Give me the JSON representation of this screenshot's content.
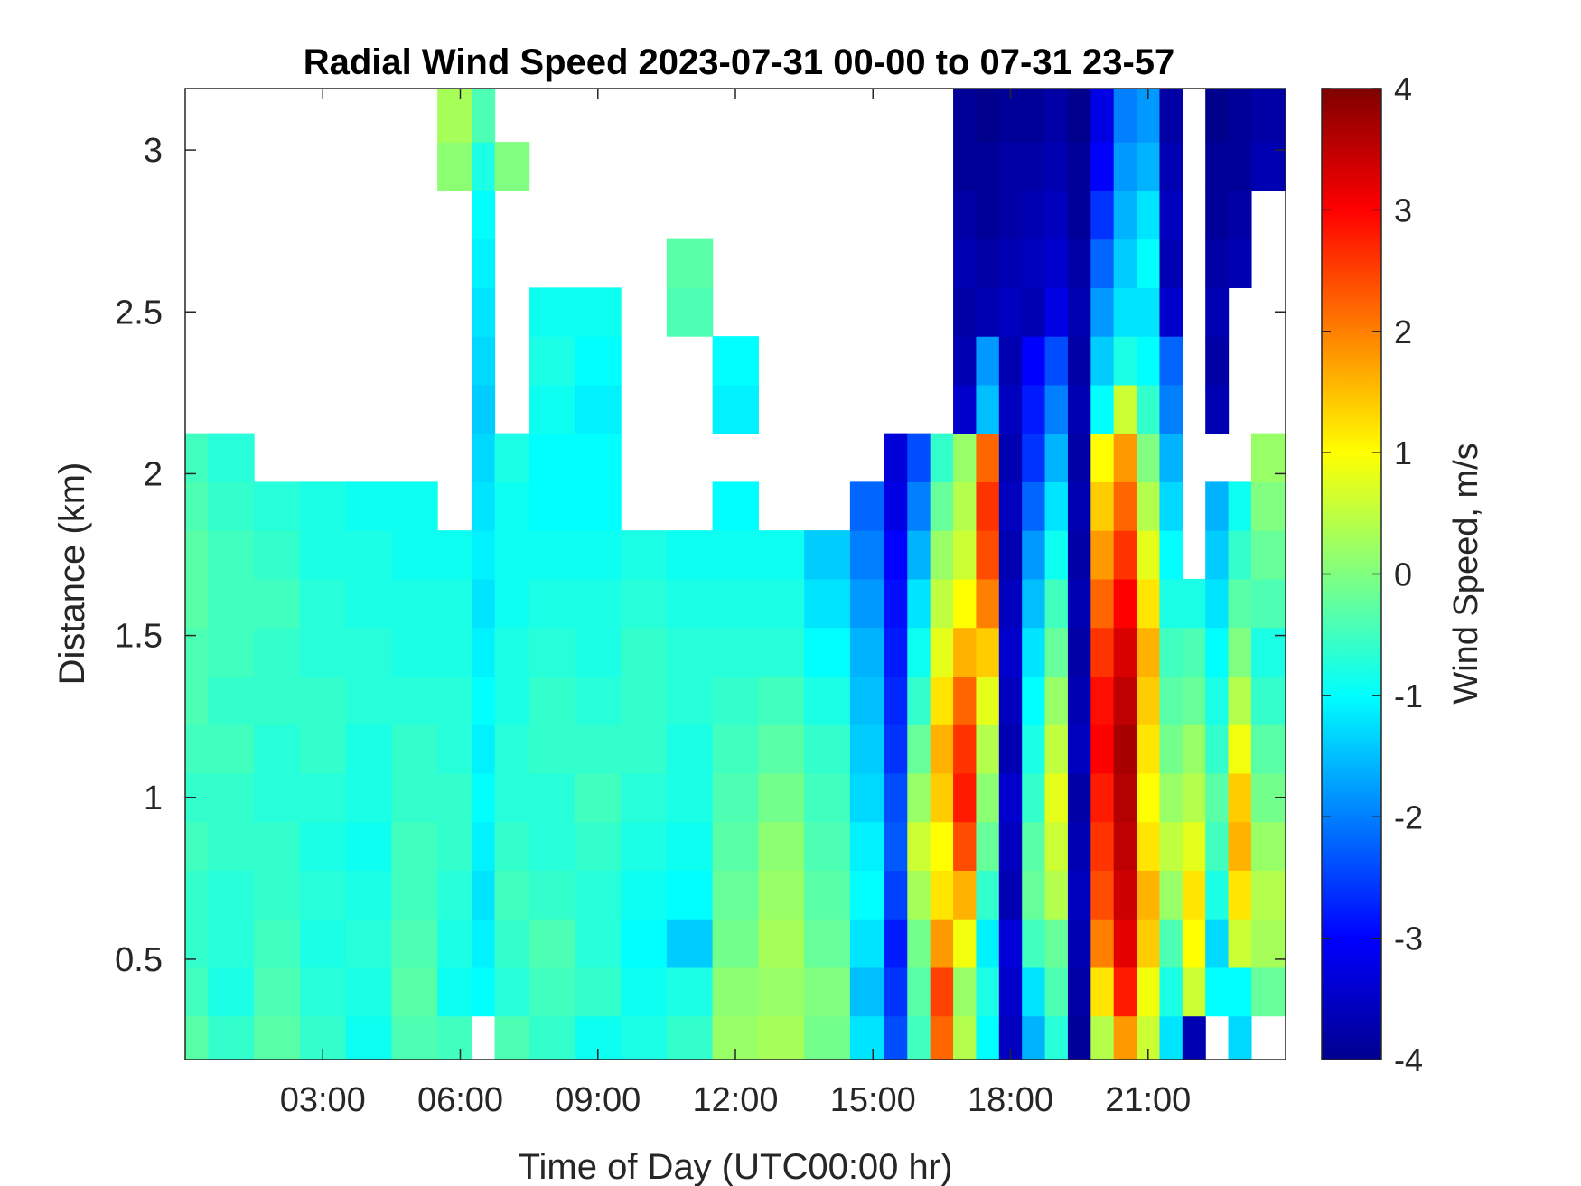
{
  "chart_data": {
    "type": "heatmap",
    "title": "Radial Wind Speed 2023-07-31 00-00 to 07-31 23-57",
    "xlabel": "Time of Day (UTC00:00 hr)",
    "ylabel": "Distance (km)",
    "colorbar_label": "Wind Speed, m/s",
    "colormap": "jet",
    "xlim_hours": [
      0,
      24
    ],
    "ylim_km": [
      0.19,
      3.19
    ],
    "clim": [
      -4,
      4
    ],
    "x_ticks": [
      {
        "value": 3,
        "label": "03:00"
      },
      {
        "value": 6,
        "label": "06:00"
      },
      {
        "value": 9,
        "label": "09:00"
      },
      {
        "value": 12,
        "label": "12:00"
      },
      {
        "value": 15,
        "label": "15:00"
      },
      {
        "value": 18,
        "label": "18:00"
      },
      {
        "value": 21,
        "label": "21:00"
      }
    ],
    "y_ticks": [
      {
        "value": 0.5,
        "label": "0.5"
      },
      {
        "value": 1,
        "label": "1"
      },
      {
        "value": 1.5,
        "label": "1.5"
      },
      {
        "value": 2,
        "label": "2"
      },
      {
        "value": 2.5,
        "label": "2.5"
      },
      {
        "value": 3,
        "label": "3"
      }
    ],
    "colorbar_ticks": [
      {
        "value": 4,
        "label": "4"
      },
      {
        "value": 3,
        "label": "3"
      },
      {
        "value": 2,
        "label": "2"
      },
      {
        "value": 1,
        "label": "1"
      },
      {
        "value": 0,
        "label": "0"
      },
      {
        "value": -1,
        "label": "-1"
      },
      {
        "value": -2,
        "label": "-2"
      },
      {
        "value": -3,
        "label": "-3"
      },
      {
        "value": -4,
        "label": "-4"
      }
    ],
    "x": [
      0,
      1,
      2,
      3,
      4,
      5,
      6,
      6.5,
      7,
      8,
      9,
      10,
      11,
      12,
      13,
      14,
      15,
      15.5,
      16,
      16.5,
      17,
      17.5,
      18,
      18.5,
      19,
      19.5,
      20,
      20.5,
      21,
      21.5,
      22,
      22.5,
      23,
      23.5
    ],
    "y": [
      0.25,
      0.4,
      0.55,
      0.7,
      0.85,
      1.0,
      1.15,
      1.3,
      1.45,
      1.6,
      1.75,
      1.9,
      2.05,
      2.2,
      2.35,
      2.5,
      2.65,
      2.8,
      2.95,
      3.1
    ],
    "z": [
      [
        -0.3,
        -0.6,
        -0.3,
        -0.6,
        -0.9,
        -0.4,
        -0.5,
        null,
        -0.4,
        -0.6,
        -0.9,
        -0.8,
        -0.6,
        0.2,
        0.3,
        -0.1,
        -1.2,
        -2.4,
        -0.5,
        2.2,
        0.4,
        -1.0,
        -3.5,
        -1.6,
        -0.7,
        -3.8,
        0.4,
        1.8,
        0.6,
        -1.2,
        -3.6,
        null,
        -1.3,
        null
      ],
      [
        -0.5,
        -0.8,
        -0.4,
        -0.7,
        -0.8,
        -0.3,
        -0.9,
        -1.0,
        -0.7,
        -0.5,
        -0.6,
        -0.9,
        -0.8,
        0.1,
        0.2,
        0.0,
        -1.5,
        -2.6,
        -0.3,
        2.5,
        0.2,
        -0.8,
        -3.4,
        -1.2,
        -0.4,
        -3.7,
        1.2,
        2.8,
        0.9,
        -0.8,
        0.6,
        -1.0,
        -1.0,
        -0.2
      ],
      [
        -0.6,
        -0.7,
        -0.5,
        -0.8,
        -0.7,
        -0.4,
        -0.8,
        -1.1,
        -0.6,
        -0.4,
        -0.7,
        -1.0,
        -1.4,
        -0.1,
        0.3,
        -0.2,
        -1.2,
        -2.8,
        -0.1,
        1.8,
        0.9,
        -1.1,
        -3.3,
        -0.5,
        -0.2,
        -3.6,
        2.0,
        3.2,
        1.4,
        -0.4,
        1.0,
        -1.3,
        0.6,
        0.3
      ],
      [
        -0.6,
        -0.7,
        -0.6,
        -0.7,
        -0.8,
        -0.5,
        -0.7,
        -1.2,
        -0.5,
        -0.6,
        -0.7,
        -0.9,
        -1.0,
        -0.2,
        0.2,
        -0.3,
        -1.0,
        -2.5,
        0.3,
        1.2,
        1.6,
        -0.6,
        -3.6,
        -0.2,
        0.4,
        -3.5,
        2.4,
        3.4,
        1.6,
        0.2,
        1.2,
        -0.8,
        1.2,
        0.4
      ],
      [
        -0.5,
        -0.6,
        -0.6,
        -0.8,
        -0.9,
        -0.5,
        -0.6,
        -1.1,
        -0.6,
        -0.7,
        -0.6,
        -0.8,
        -0.9,
        -0.3,
        0.1,
        -0.4,
        -1.1,
        -2.3,
        0.6,
        1.0,
        2.4,
        -0.2,
        -3.5,
        -0.3,
        0.6,
        -3.6,
        2.6,
        3.5,
        1.2,
        0.5,
        0.8,
        -0.5,
        1.6,
        0.2
      ],
      [
        -0.6,
        -0.6,
        -0.7,
        -0.7,
        -0.8,
        -0.6,
        -0.6,
        -1.0,
        -0.7,
        -0.7,
        -0.5,
        -0.7,
        -0.8,
        -0.4,
        -0.1,
        -0.5,
        -1.3,
        -2.4,
        0.2,
        1.4,
        2.8,
        0.1,
        -3.4,
        -0.6,
        0.8,
        -3.7,
        2.8,
        3.6,
        1.0,
        0.2,
        0.4,
        -0.3,
        1.4,
        -0.1
      ],
      [
        -0.5,
        -0.5,
        -0.7,
        -0.6,
        -0.8,
        -0.6,
        -0.7,
        -1.1,
        -0.7,
        -0.6,
        -0.6,
        -0.6,
        -0.8,
        -0.5,
        -0.3,
        -0.6,
        -1.4,
        -2.6,
        -0.2,
        1.6,
        2.6,
        0.4,
        -3.6,
        -0.8,
        0.5,
        -3.5,
        3.0,
        3.7,
        1.2,
        -0.1,
        0.2,
        -0.6,
        0.9,
        -0.3
      ],
      [
        -0.4,
        -0.6,
        -0.6,
        -0.6,
        -0.7,
        -0.7,
        -0.7,
        -1.0,
        -0.8,
        -0.6,
        -0.7,
        -0.6,
        -0.7,
        -0.6,
        -0.5,
        -0.8,
        -1.5,
        -2.7,
        -0.6,
        1.2,
        2.2,
        0.8,
        -3.5,
        -1.0,
        0.2,
        -3.6,
        2.9,
        3.5,
        1.4,
        -0.3,
        -0.2,
        -0.8,
        0.4,
        -0.6
      ],
      [
        -0.4,
        -0.5,
        -0.6,
        -0.7,
        -0.7,
        -0.8,
        -0.8,
        -1.1,
        -0.8,
        -0.7,
        -0.8,
        -0.6,
        -0.7,
        -0.7,
        -0.7,
        -1.0,
        -1.6,
        -2.8,
        -0.9,
        0.8,
        1.6,
        1.4,
        -3.4,
        -1.2,
        -0.2,
        -3.7,
        2.6,
        3.3,
        1.6,
        -0.5,
        -0.4,
        -1.0,
        0.0,
        -0.8
      ],
      [
        -0.3,
        -0.5,
        -0.5,
        -0.7,
        -0.8,
        -0.8,
        -0.8,
        -1.2,
        -0.9,
        -0.8,
        -0.8,
        -0.7,
        -0.8,
        -0.8,
        -0.8,
        -1.2,
        -1.8,
        -2.9,
        -1.2,
        0.5,
        1.0,
        2.0,
        -3.5,
        -1.5,
        -0.5,
        -3.6,
        2.2,
        3.0,
        1.2,
        -0.8,
        -0.8,
        -1.2,
        -0.3,
        -0.4
      ],
      [
        -0.3,
        -0.5,
        -0.6,
        -0.8,
        -0.8,
        -0.9,
        -0.9,
        -1.1,
        -0.9,
        -0.9,
        -0.9,
        -0.8,
        -0.9,
        -0.9,
        -0.9,
        -1.4,
        -2.0,
        -3.0,
        -1.6,
        0.2,
        0.6,
        2.4,
        -3.6,
        -1.8,
        -0.9,
        -3.7,
        1.8,
        2.6,
        0.8,
        -1.0,
        null,
        -1.4,
        -0.6,
        -0.2
      ],
      [
        -0.4,
        -0.6,
        -0.7,
        -0.8,
        -0.9,
        -0.9,
        null,
        -1.2,
        -0.9,
        -1.0,
        -1.0,
        null,
        null,
        -1.0,
        null,
        null,
        -2.2,
        -3.2,
        -2.0,
        -0.2,
        0.4,
        2.6,
        -3.5,
        -2.2,
        -1.2,
        -3.6,
        1.4,
        2.2,
        0.4,
        -1.3,
        null,
        -1.6,
        -0.9,
        0.0
      ],
      [
        -0.5,
        -0.7,
        null,
        null,
        null,
        null,
        null,
        -1.3,
        -0.8,
        -1.0,
        -1.0,
        null,
        null,
        null,
        null,
        null,
        null,
        -3.3,
        -2.4,
        -0.6,
        0.2,
        2.2,
        -3.6,
        -2.6,
        -1.6,
        -3.7,
        1.0,
        1.8,
        0.0,
        -1.6,
        null,
        null,
        null,
        0.2
      ],
      [
        null,
        null,
        null,
        null,
        null,
        null,
        null,
        -1.4,
        null,
        -0.9,
        -1.1,
        null,
        null,
        -1.1,
        null,
        null,
        null,
        null,
        null,
        null,
        -3.4,
        -1.5,
        -3.5,
        -2.8,
        -2.0,
        -3.6,
        -1.0,
        0.6,
        -0.6,
        -2.0,
        null,
        -3.6,
        null,
        null
      ],
      [
        null,
        null,
        null,
        null,
        null,
        null,
        null,
        -1.3,
        null,
        -0.8,
        -1.0,
        null,
        null,
        -1.0,
        null,
        null,
        null,
        null,
        null,
        null,
        -3.6,
        -1.8,
        -3.6,
        -3.0,
        -2.4,
        -3.7,
        -1.4,
        -0.8,
        -1.0,
        -2.2,
        null,
        -3.7,
        null,
        null
      ],
      [
        null,
        null,
        null,
        null,
        null,
        null,
        null,
        -1.2,
        null,
        -0.9,
        -0.9,
        null,
        -0.4,
        null,
        null,
        null,
        null,
        null,
        null,
        null,
        -3.7,
        -3.6,
        -3.5,
        -3.6,
        -3.2,
        -3.6,
        -1.8,
        -1.2,
        -1.2,
        -3.4,
        null,
        -3.6,
        null,
        null
      ],
      [
        null,
        null,
        null,
        null,
        null,
        null,
        null,
        -1.1,
        null,
        null,
        null,
        null,
        -0.3,
        null,
        null,
        null,
        null,
        null,
        null,
        null,
        -3.6,
        -3.7,
        -3.6,
        -3.5,
        -3.4,
        -3.7,
        -2.2,
        -1.4,
        -1.0,
        -3.6,
        null,
        -3.7,
        -3.6,
        null
      ],
      [
        null,
        null,
        null,
        null,
        null,
        null,
        null,
        -1.0,
        null,
        null,
        null,
        null,
        null,
        null,
        null,
        null,
        null,
        null,
        null,
        null,
        -3.7,
        -3.8,
        -3.7,
        -3.6,
        -3.5,
        -3.8,
        -2.6,
        -1.6,
        -1.2,
        -3.5,
        null,
        -3.8,
        -3.7,
        null
      ],
      [
        null,
        null,
        null,
        null,
        null,
        null,
        0.1,
        -0.8,
        0.0,
        null,
        null,
        null,
        null,
        null,
        null,
        null,
        null,
        null,
        null,
        null,
        -3.8,
        -3.8,
        -3.7,
        -3.7,
        -3.6,
        -3.8,
        -3.0,
        -1.8,
        -1.6,
        -3.6,
        null,
        -3.8,
        -3.8,
        -3.6
      ],
      [
        null,
        null,
        null,
        null,
        null,
        null,
        0.3,
        -0.4,
        null,
        null,
        null,
        null,
        null,
        null,
        null,
        null,
        null,
        null,
        null,
        null,
        -3.8,
        -3.9,
        -3.8,
        -3.8,
        -3.7,
        -3.9,
        -3.2,
        -2.0,
        -1.8,
        -3.7,
        null,
        -3.9,
        -3.8,
        -3.7
      ]
    ]
  }
}
